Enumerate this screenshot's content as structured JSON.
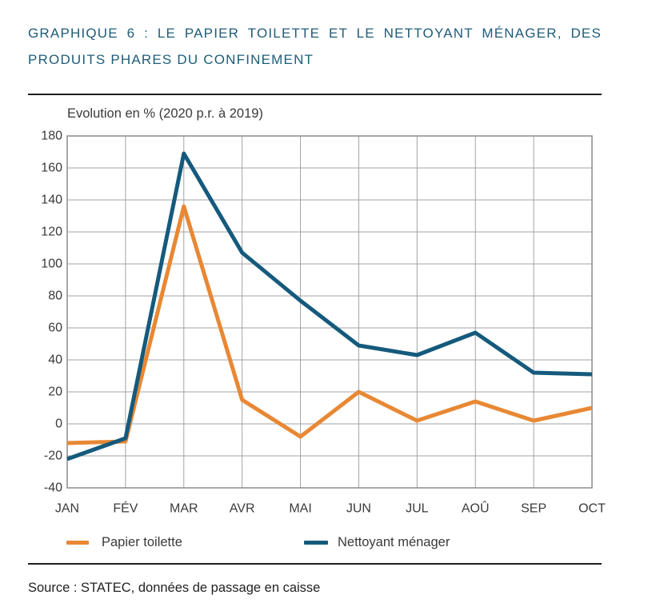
{
  "source": "Source : STATEC, données de passage en caisse",
  "colors": {
    "title": "#1e5c78",
    "text": "#3a3a3a",
    "grid": "#a3a3a3",
    "axis": "#8c8c8c",
    "rule": "#1f1f1f"
  },
  "chart_data": {
    "type": "line",
    "title": "GRAPHIQUE 6 : LE PAPIER TOILETTE ET LE NETTOYANT MÉNAGER, DES PRODUITS PHARES DU CONFINEMENT",
    "xlabel": "",
    "ylabel": "Evolution en % (2020 p.r. à 2019)",
    "categories": [
      "JAN",
      "FÉV",
      "MAR",
      "AVR",
      "MAI",
      "JUN",
      "JUL",
      "AOÛ",
      "SEP",
      "OCT"
    ],
    "ylim": [
      -40,
      180
    ],
    "yticks": [
      180,
      160,
      140,
      120,
      100,
      80,
      60,
      40,
      20,
      0,
      -20,
      -40
    ],
    "grid": true,
    "legend": "bottom",
    "series": [
      {
        "name": "Papier toilette",
        "color": "#e88834",
        "values": [
          -12,
          -11,
          136,
          15,
          -8,
          20,
          2,
          14,
          2,
          10
        ]
      },
      {
        "name": "Nettoyant ménager",
        "color": "#155a7c",
        "values": [
          -22,
          -9,
          169,
          107,
          77,
          49,
          43,
          57,
          32,
          31
        ]
      }
    ]
  }
}
